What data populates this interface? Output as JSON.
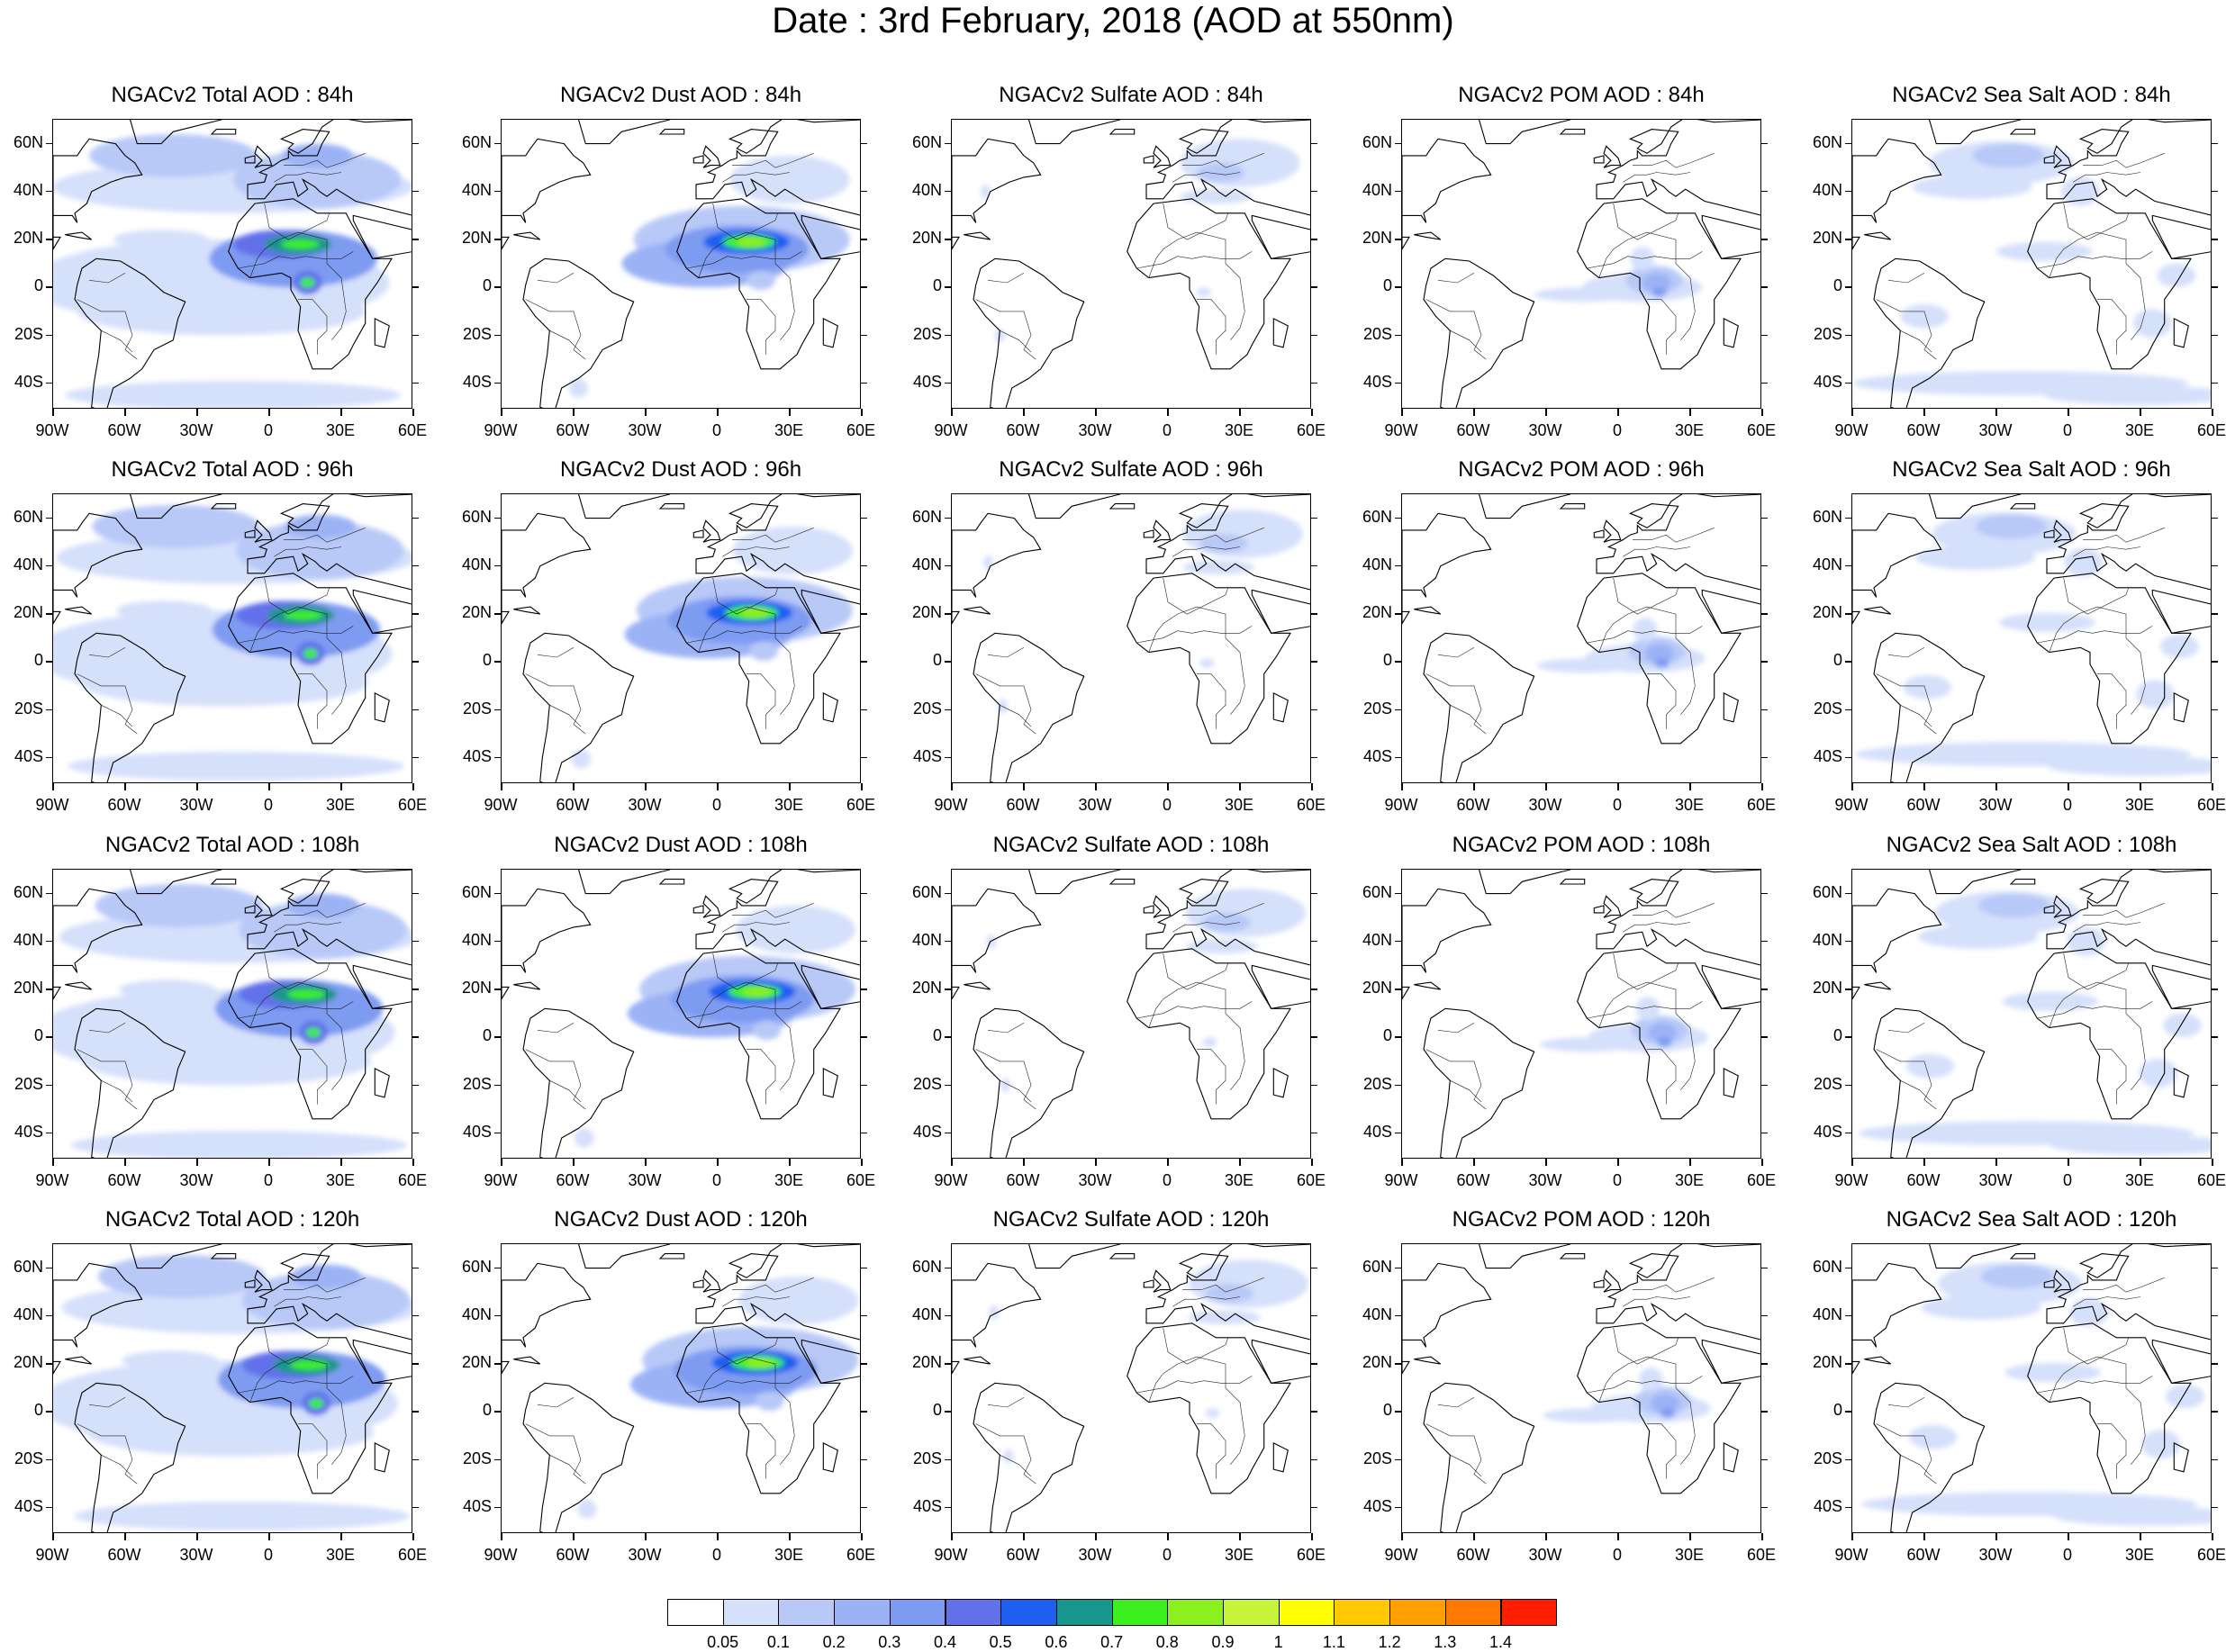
{
  "title": "Date : 3rd February, 2018 (AOD at 550nm)",
  "rows": [
    {
      "hour": "84h",
      "panels": [
        "NGACv2 Total AOD : 84h",
        "NGACv2 Dust AOD : 84h",
        "NGACv2 Sulfate AOD : 84h",
        "NGACv2 POM AOD : 84h",
        "NGACv2 Sea Salt AOD : 84h"
      ]
    },
    {
      "hour": "96h",
      "panels": [
        "NGACv2 Total AOD : 96h",
        "NGACv2 Dust AOD : 96h",
        "NGACv2 Sulfate AOD : 96h",
        "NGACv2 POM AOD : 96h",
        "NGACv2 Sea Salt AOD : 96h"
      ]
    },
    {
      "hour": "108h",
      "panels": [
        "NGACv2 Total AOD : 108h",
        "NGACv2 Dust AOD : 108h",
        "NGACv2 Sulfate AOD : 108h",
        "NGACv2 POM AOD : 108h",
        "NGACv2 Sea Salt AOD : 108h"
      ]
    },
    {
      "hour": "120h",
      "panels": [
        "NGACv2 Total AOD : 120h",
        "NGACv2 Dust AOD : 120h",
        "NGACv2 Sulfate AOD : 120h",
        "NGACv2 POM AOD : 120h",
        "NGACv2 Sea Salt  AOD : 120h"
      ]
    }
  ],
  "species": [
    "total",
    "dust",
    "sulfate",
    "pom",
    "seasalt"
  ],
  "lat_ticks": [
    "60N",
    "40N",
    "20N",
    "0",
    "20S",
    "40S"
  ],
  "lon_ticks": [
    "90W",
    "60W",
    "30W",
    "0",
    "30E",
    "60E"
  ],
  "colorbar": {
    "labels": [
      "0.05",
      "0.1",
      "0.2",
      "0.3",
      "0.4",
      "0.5",
      "0.6",
      "0.7",
      "0.8",
      "0.9",
      "1",
      "1.1",
      "1.2",
      "1.3",
      "1.4"
    ],
    "colors": [
      "#ffffff",
      "#d5e0fb",
      "#b8c9f8",
      "#9bb2f5",
      "#7e9bf2",
      "#6271ea",
      "#1e5ff2",
      "#16968c",
      "#3cf01e",
      "#8cf01e",
      "#c8f53c",
      "#ffff00",
      "#ffc800",
      "#ffa000",
      "#ff7800",
      "#ff1e00"
    ]
  }
}
